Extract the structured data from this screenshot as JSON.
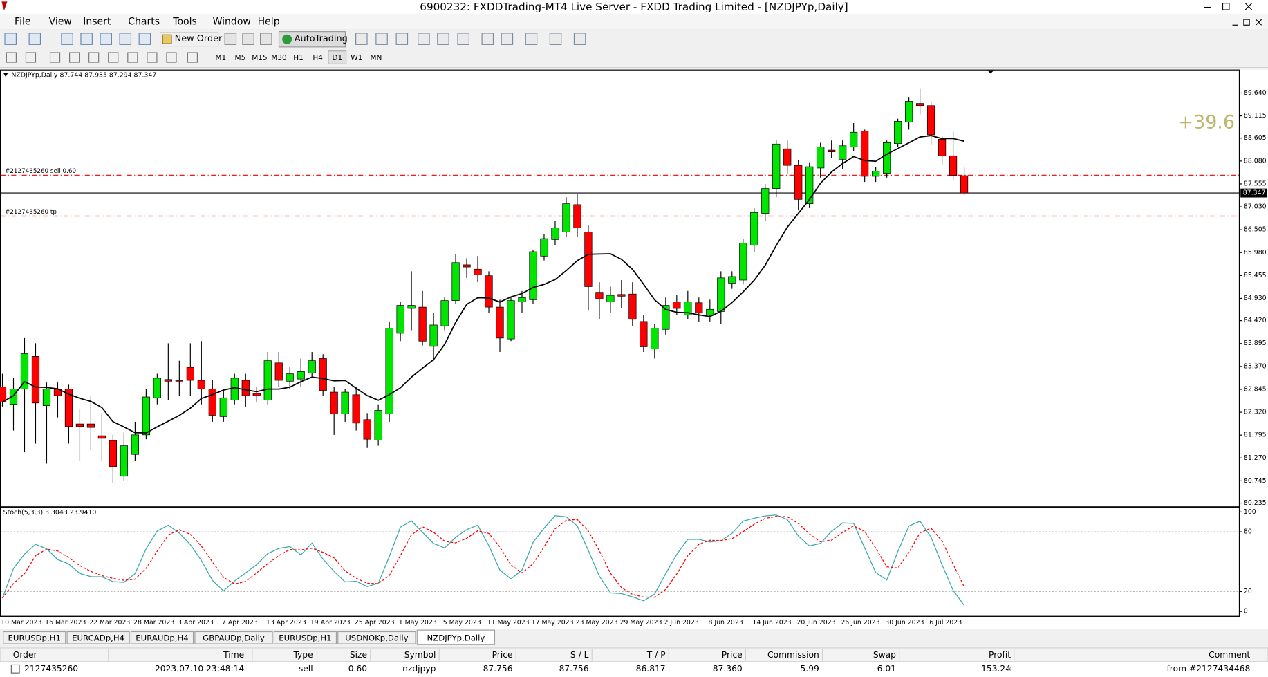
{
  "window": {
    "title": "6900232: FXDDTrading-MT4 Live Server - FXDD Trading Limited - [NZDJPYp,Daily]"
  },
  "menu": [
    "File",
    "View",
    "Insert",
    "Charts",
    "Tools",
    "Window",
    "Help"
  ],
  "toolbar": {
    "new_order": "New Order",
    "autotrading": "AutoTrading",
    "timeframes": [
      "M1",
      "M5",
      "M15",
      "M30",
      "H1",
      "H4",
      "D1",
      "W1",
      "MN"
    ],
    "active_timeframe": "D1"
  },
  "chart_data": [
    {
      "type": "candlestick",
      "title": "NZDJPYp,Daily",
      "subtitle": "87.744 87.935 87.294 87.347",
      "categories": [
        "10 Mar 2023",
        null,
        null,
        null,
        "16 Mar 2023",
        null,
        null,
        null,
        "22 Mar 2023",
        null,
        null,
        null,
        "28 Mar 2023",
        null,
        null,
        null,
        "3 Apr 2023",
        null,
        null,
        null,
        "7 Apr 2023",
        null,
        null,
        null,
        "13 Apr 2023",
        null,
        null,
        null,
        "19 Apr 2023",
        null,
        null,
        null,
        "25 Apr 2023",
        null,
        null,
        null,
        "1 May 2023",
        null,
        null,
        null,
        "5 May 2023",
        null,
        null,
        null,
        "11 May 2023",
        null,
        null,
        null,
        "17 May 2023",
        null,
        null,
        null,
        "23 May 2023",
        null,
        null,
        null,
        "29 May 2023",
        null,
        null,
        null,
        "2 Jun 2023",
        null,
        null,
        null,
        "8 Jun 2023",
        null,
        null,
        null,
        "14 Jun 2023",
        null,
        null,
        null,
        "20 Jun 2023",
        null,
        null,
        null,
        "26 Jun 2023",
        null,
        null,
        null,
        "30 Jun 2023",
        null,
        null,
        null,
        "6 Jul 2023",
        null,
        null,
        null
      ],
      "open": [
        82.9,
        82.5,
        82.85,
        83.6,
        82.47,
        82.85,
        82.85,
        82.05,
        82.05,
        81.78,
        81.67,
        80.85,
        81.35,
        81.8,
        82.65,
        83.07,
        83.05,
        83.35,
        83.05,
        82.85,
        82.22,
        82.6,
        83.05,
        82.75,
        82.6,
        83.45,
        83.03,
        83.08,
        83.22,
        83.55,
        82.78,
        82.28,
        82.72,
        82.15,
        81.68,
        82.28,
        84.13,
        84.7,
        84.73,
        83.83,
        84.3,
        84.88,
        85.7,
        85.6,
        85.45,
        84.73,
        84.0,
        84.85,
        84.9,
        85.9,
        86.28,
        86.45,
        87.08,
        86.45,
        85.07,
        84.85,
        85.02,
        85.03,
        84.4,
        83.77,
        84.22,
        84.85,
        84.55,
        84.83,
        84.55,
        84.63,
        85.28,
        85.35,
        86.15,
        86.88,
        87.45,
        88.36,
        87.98,
        87.1,
        87.92,
        88.33,
        88.12,
        88.4,
        88.77,
        87.73,
        87.8,
        88.48,
        88.97,
        89.4,
        89.35,
        88.58,
        88.2,
        87.744
      ],
      "high": [
        83.2,
        83.1,
        84.02,
        83.9,
        83.0,
        83.0,
        82.95,
        82.4,
        82.7,
        82.3,
        81.8,
        81.85,
        82.1,
        82.85,
        83.2,
        83.9,
        83.5,
        83.9,
        83.95,
        83.05,
        82.8,
        83.2,
        83.2,
        82.9,
        83.7,
        83.7,
        83.35,
        83.55,
        83.7,
        83.65,
        82.9,
        82.85,
        82.9,
        82.3,
        82.5,
        84.4,
        84.85,
        85.55,
        85.1,
        84.6,
        84.95,
        85.95,
        85.85,
        85.9,
        85.55,
        84.9,
        84.95,
        85.1,
        86.05,
        86.4,
        86.7,
        87.25,
        87.33,
        86.6,
        85.3,
        85.2,
        85.35,
        85.3,
        84.55,
        84.35,
        84.95,
        85.0,
        85.1,
        84.95,
        84.9,
        85.55,
        85.55,
        86.3,
        87.0,
        87.55,
        88.55,
        88.55,
        88.1,
        88.05,
        88.5,
        88.55,
        88.55,
        88.95,
        88.8,
        87.95,
        88.55,
        89.05,
        89.55,
        89.75,
        89.45,
        88.65,
        88.75,
        87.935
      ],
      "low": [
        82.45,
        81.9,
        81.4,
        81.6,
        81.14,
        82.2,
        81.6,
        81.2,
        81.45,
        81.2,
        80.7,
        80.75,
        81.2,
        81.7,
        82.5,
        82.6,
        82.7,
        82.7,
        82.5,
        82.1,
        82.1,
        82.5,
        82.45,
        82.55,
        82.5,
        82.9,
        82.85,
        82.9,
        83.1,
        82.7,
        81.8,
        82.1,
        81.9,
        81.5,
        81.55,
        82.1,
        83.95,
        84.2,
        83.85,
        83.5,
        84.2,
        84.8,
        85.4,
        85.3,
        84.6,
        83.7,
        83.95,
        84.6,
        84.8,
        85.8,
        86.15,
        86.35,
        86.35,
        84.65,
        84.45,
        84.6,
        84.7,
        84.3,
        83.7,
        83.55,
        84.1,
        84.55,
        84.45,
        84.4,
        84.4,
        84.35,
        85.15,
        85.25,
        86.0,
        86.7,
        87.25,
        87.8,
        86.95,
        87.0,
        87.7,
        88.15,
        87.9,
        88.3,
        87.6,
        87.6,
        87.7,
        88.4,
        88.8,
        89.15,
        88.45,
        88.0,
        87.65,
        87.294
      ],
      "close": [
        82.55,
        82.85,
        83.66,
        82.53,
        82.85,
        82.7,
        81.99,
        81.99,
        81.97,
        81.72,
        81.07,
        81.55,
        81.8,
        82.67,
        83.1,
        83.03,
        83.03,
        83.05,
        82.85,
        82.25,
        82.65,
        83.1,
        82.7,
        82.7,
        83.5,
        83.05,
        83.2,
        83.25,
        83.5,
        82.82,
        82.28,
        82.78,
        82.07,
        81.7,
        82.36,
        84.25,
        84.77,
        84.77,
        83.95,
        84.32,
        84.88,
        85.75,
        85.65,
        85.47,
        84.73,
        84.02,
        84.88,
        84.95,
        86.0,
        86.3,
        86.55,
        87.1,
        86.55,
        85.2,
        84.92,
        85.0,
        84.98,
        84.45,
        83.82,
        84.25,
        84.77,
        84.7,
        84.85,
        84.6,
        84.68,
        85.4,
        85.43,
        86.2,
        86.9,
        87.45,
        88.47,
        87.98,
        87.2,
        87.95,
        88.4,
        88.29,
        88.43,
        88.74,
        87.73,
        87.85,
        88.5,
        88.99,
        89.45,
        89.35,
        88.68,
        88.2,
        87.75,
        87.347
      ],
      "up_color": "#00e600",
      "down_color": "#ff0000",
      "ma_color": "#000000",
      "ma_period": 8,
      "ylim": [
        80.161,
        90.159
      ],
      "yticks": [
        {
          "value": 89.64,
          "label": "89.640"
        },
        89.115,
        88.605,
        {
          "value": 88.08,
          "label": "88.080"
        },
        87.555,
        {
          "value": 87.03,
          "label": "87.030"
        },
        86.505,
        {
          "value": 85.98,
          "label": "85.980"
        },
        85.455,
        {
          "value": 84.93,
          "label": "84.930"
        },
        {
          "value": 84.42,
          "label": "84.420"
        },
        83.895,
        {
          "value": 83.37,
          "label": "83.370"
        },
        82.845,
        {
          "value": 82.32,
          "label": "82.320"
        },
        81.795,
        {
          "value": 81.27,
          "label": "81.270"
        },
        80.745,
        80.235
      ],
      "grid": false,
      "bid": 87.347,
      "orders": [
        {
          "label": "#2127435260 sell 0.60",
          "value": 87.756
        },
        {
          "label": "#2127435260 tp",
          "value": 86.817
        }
      ],
      "profit_label": "+39.6"
    },
    {
      "type": "stochastic",
      "title": "Stoch(5,3,3) 3.3043 23.9410",
      "periods": [
        5,
        3,
        3
      ],
      "k_color": "#3fa9a9",
      "d_color": "#ff0000",
      "ylim": [
        -4.9,
        104
      ],
      "yticks": [
        0,
        20,
        80,
        100
      ],
      "levels": [
        20,
        80
      ]
    }
  ],
  "tabs": [
    "EURUSDp,H1",
    "EURCADp,H4",
    "EURAUDp,H4",
    "GBPAUDp,Daily",
    "EURUSDp,H1",
    "USDNOKp,Daily",
    "NZDJPYp,Daily"
  ],
  "active_tab": "NZDJPYp,Daily",
  "terminal": {
    "columns": [
      "Order",
      "Time",
      "Type",
      "Size",
      "Symbol",
      "Price",
      "S / L",
      "T / P",
      "Price",
      "Commission",
      "Swap",
      "Profit",
      "Comment"
    ],
    "rows": [
      [
        "2127435260",
        "2023.07.10 23:48:14",
        "sell",
        "0.60",
        "nzdjpyp",
        "87.756",
        "87.756",
        "86.817",
        "87.360",
        "-5.99",
        "-6.01",
        "153.24",
        "from #2127434468"
      ]
    ]
  }
}
